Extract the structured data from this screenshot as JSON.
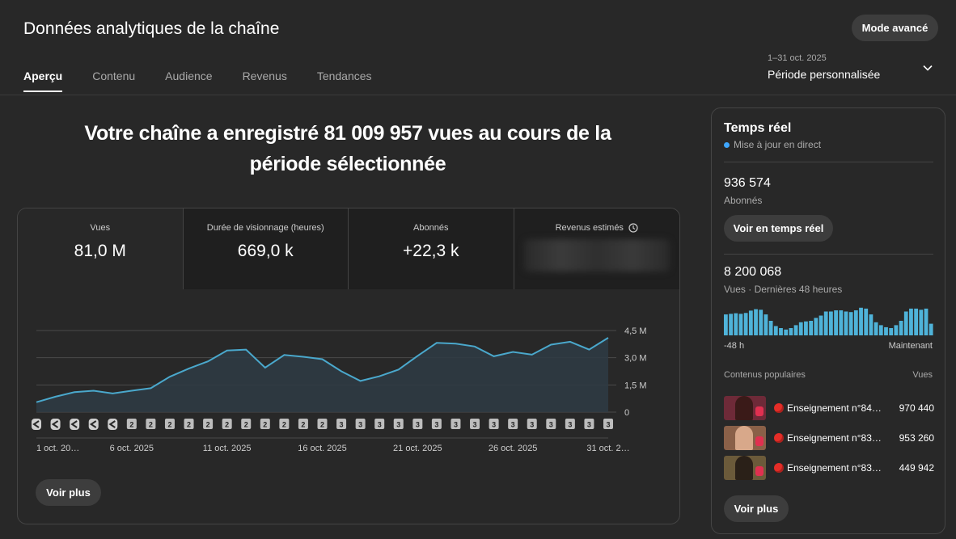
{
  "header": {
    "title": "Données analytiques de la chaîne",
    "advanced_label": "Mode avancé",
    "tabs": [
      {
        "label": "Aperçu",
        "active": true
      },
      {
        "label": "Contenu",
        "active": false
      },
      {
        "label": "Audience",
        "active": false
      },
      {
        "label": "Revenus",
        "active": false
      },
      {
        "label": "Tendances",
        "active": false
      }
    ],
    "period": {
      "range": "1–31 oct. 2025",
      "label": "Période personnalisée",
      "icon": "chevron-down-icon"
    }
  },
  "headline": {
    "line1": "Votre chaîne a enregistré 81 009 957 vues au cours de la",
    "line2": "période sélectionnée"
  },
  "metrics": [
    {
      "label": "Vues",
      "value": "81,0 M"
    },
    {
      "label": "Durée de visionnage (heures)",
      "value": "669,0 k"
    },
    {
      "label": "Abonnés",
      "value": "+22,3 k"
    },
    {
      "label": "Revenus estimés",
      "value": "",
      "icon": "clock-icon",
      "hidden": true
    }
  ],
  "chart_data": {
    "type": "area",
    "title": "",
    "xlabel": "",
    "ylabel": "",
    "x": [
      "1 oct.",
      "2 oct.",
      "3 oct.",
      "4 oct.",
      "5 oct.",
      "6 oct.",
      "7 oct.",
      "8 oct.",
      "9 oct.",
      "10 oct.",
      "11 oct.",
      "12 oct.",
      "13 oct.",
      "14 oct.",
      "15 oct.",
      "16 oct.",
      "17 oct.",
      "18 oct.",
      "19 oct.",
      "20 oct.",
      "21 oct.",
      "22 oct.",
      "23 oct.",
      "24 oct.",
      "25 oct.",
      "26 oct.",
      "27 oct.",
      "28 oct.",
      "29 oct.",
      "30 oct.",
      "31 oct."
    ],
    "series": [
      {
        "values": [
          0.55,
          0.85,
          1.1,
          1.18,
          1.03,
          1.18,
          1.32,
          1.95,
          2.4,
          2.8,
          3.4,
          3.45,
          2.45,
          3.15,
          3.05,
          2.92,
          2.25,
          1.72,
          1.98,
          2.35,
          3.1,
          3.82,
          3.78,
          3.62,
          3.08,
          3.32,
          3.17,
          3.72,
          3.88,
          3.45,
          4.1
        ]
      }
    ],
    "ylim": [
      0,
      4.5
    ],
    "yticks": [
      "0",
      "1,5 M",
      "3,0 M",
      "4,5 M"
    ],
    "ytick_values": [
      0,
      1.5,
      3.0,
      4.5
    ],
    "xtick_labels": [
      "1 oct. 20…",
      "6 oct. 2025",
      "11 oct. 2025",
      "16 oct. 2025",
      "21 oct. 2025",
      "26 oct. 2025",
      "31 oct. 2…"
    ],
    "xtick_index": [
      0,
      5,
      10,
      15,
      20,
      25,
      30
    ],
    "markers": [
      "S",
      "S",
      "S",
      "S",
      "S",
      "2",
      "2",
      "2",
      "2",
      "2",
      "2",
      "2",
      "2",
      "2",
      "2",
      "2",
      "3",
      "3",
      "3",
      "3",
      "3",
      "3",
      "3",
      "3",
      "3",
      "3",
      "3",
      "3",
      "3",
      "3",
      "3"
    ],
    "grid": true,
    "line_color": "#4aa8cc"
  },
  "main_more_label": "Voir plus",
  "realtime": {
    "title": "Temps réel",
    "live_label": "Mise à jour en direct",
    "live_color": "#3ea6ff",
    "subscribers_value": "936 574",
    "subscribers_label": "Abonnés",
    "realtime_button": "Voir en temps réel",
    "views_value": "8 200 068",
    "views_label": "Vues · Dernières 48 heures",
    "bars": [
      0.72,
      0.74,
      0.76,
      0.74,
      0.77,
      0.85,
      0.9,
      0.88,
      0.72,
      0.5,
      0.32,
      0.25,
      0.2,
      0.25,
      0.35,
      0.45,
      0.48,
      0.5,
      0.6,
      0.68,
      0.82,
      0.82,
      0.86,
      0.86,
      0.82,
      0.8,
      0.86,
      0.95,
      0.92,
      0.72,
      0.45,
      0.35,
      0.28,
      0.25,
      0.35,
      0.5,
      0.82,
      0.92,
      0.92,
      0.88,
      0.92,
      0.4
    ],
    "bar_color": "#4fb3d9",
    "axis_start": "-48 h",
    "axis_end": "Maintenant",
    "popular_label": "Contenus populaires",
    "popular_views_label": "Vues",
    "popular": [
      {
        "title": "Enseignement n°84…",
        "views": "970 440",
        "thumb_bg": "#6e2a38",
        "face": "#3a1a18"
      },
      {
        "title": "Enseignement n°83…",
        "views": "953 260",
        "thumb_bg": "#8a6048",
        "face": "#d8a88a"
      },
      {
        "title": "Enseignement n°83…",
        "views": "449 942",
        "thumb_bg": "#6b5a3a",
        "face": "#2a2018"
      }
    ],
    "more_label": "Voir plus"
  }
}
